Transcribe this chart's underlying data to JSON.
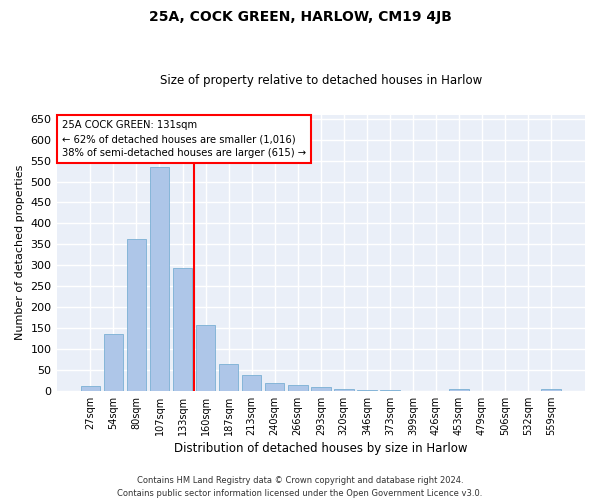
{
  "title": "25A, COCK GREEN, HARLOW, CM19 4JB",
  "subtitle": "Size of property relative to detached houses in Harlow",
  "xlabel": "Distribution of detached houses by size in Harlow",
  "ylabel": "Number of detached properties",
  "bar_color": "#aec6e8",
  "bar_edge_color": "#7aafd4",
  "background_color": "#eaeff8",
  "grid_color": "#ffffff",
  "categories": [
    "27sqm",
    "54sqm",
    "80sqm",
    "107sqm",
    "133sqm",
    "160sqm",
    "187sqm",
    "213sqm",
    "240sqm",
    "266sqm",
    "293sqm",
    "320sqm",
    "346sqm",
    "373sqm",
    "399sqm",
    "426sqm",
    "453sqm",
    "479sqm",
    "506sqm",
    "532sqm",
    "559sqm"
  ],
  "values": [
    11,
    135,
    362,
    535,
    293,
    158,
    65,
    38,
    18,
    15,
    10,
    5,
    3,
    3,
    0,
    0,
    5,
    0,
    0,
    0,
    5
  ],
  "ylim": [
    0,
    660
  ],
  "yticks": [
    0,
    50,
    100,
    150,
    200,
    250,
    300,
    350,
    400,
    450,
    500,
    550,
    600,
    650
  ],
  "red_line_index": 4,
  "annotation_title": "25A COCK GREEN: 131sqm",
  "annotation_line1": "← 62% of detached houses are smaller (1,016)",
  "annotation_line2": "38% of semi-detached houses are larger (615) →",
  "footnote1": "Contains HM Land Registry data © Crown copyright and database right 2024.",
  "footnote2": "Contains public sector information licensed under the Open Government Licence v3.0."
}
